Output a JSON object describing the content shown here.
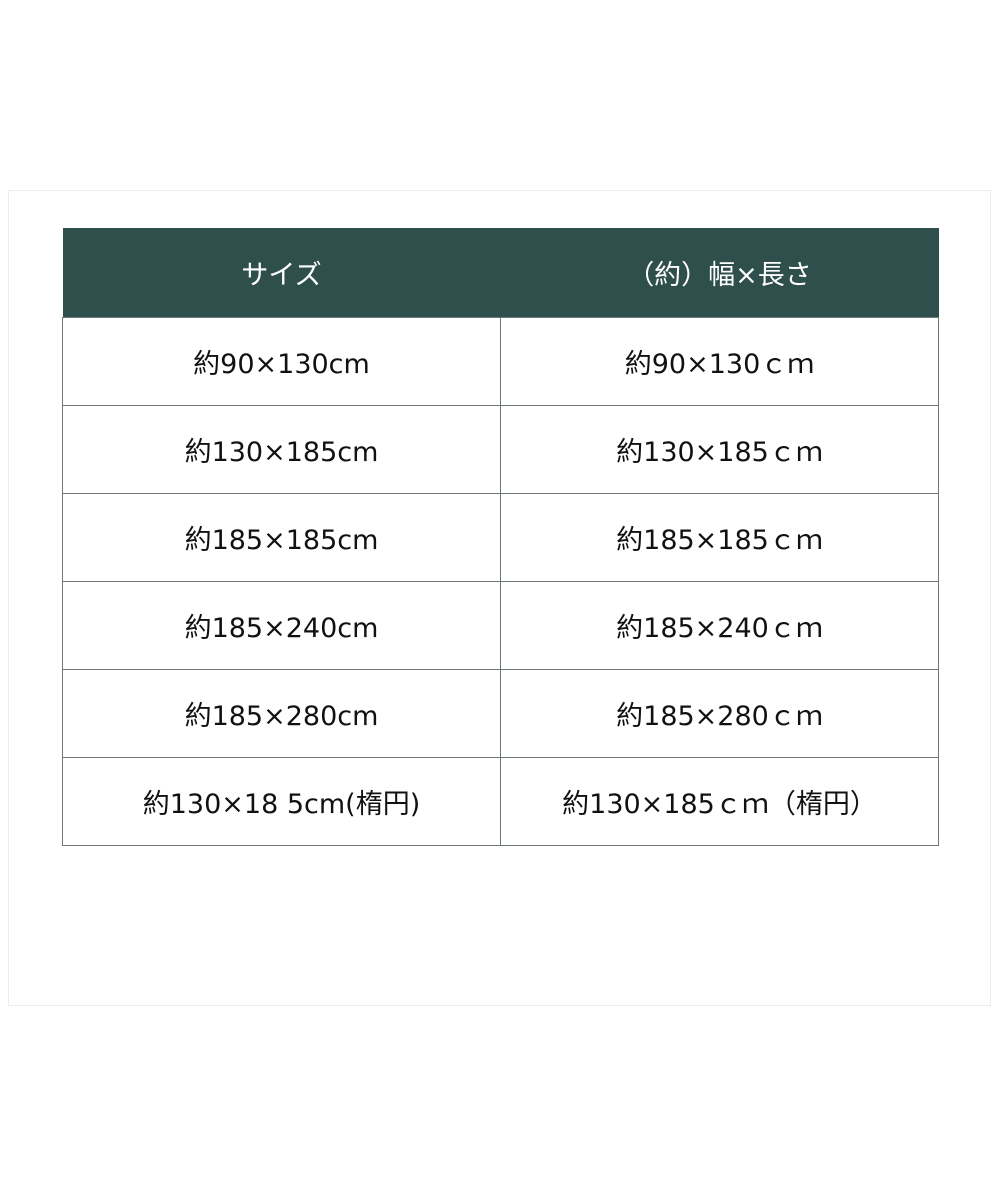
{
  "table": {
    "header_color": "#2f4f4c",
    "headers": [
      "サイズ",
      "（約）幅×長さ"
    ],
    "rows": [
      [
        "約90×130cm",
        "約90×130ｃｍ"
      ],
      [
        "約130×185cm",
        "約130×185ｃｍ"
      ],
      [
        "約185×185cm",
        "約185×185ｃｍ"
      ],
      [
        "約185×240cm",
        "約185×240ｃｍ"
      ],
      [
        "約185×280cm",
        "約185×280ｃｍ"
      ],
      [
        "約130×18 5cm(楕円)",
        "約130×185ｃｍ（楕円）"
      ]
    ]
  }
}
